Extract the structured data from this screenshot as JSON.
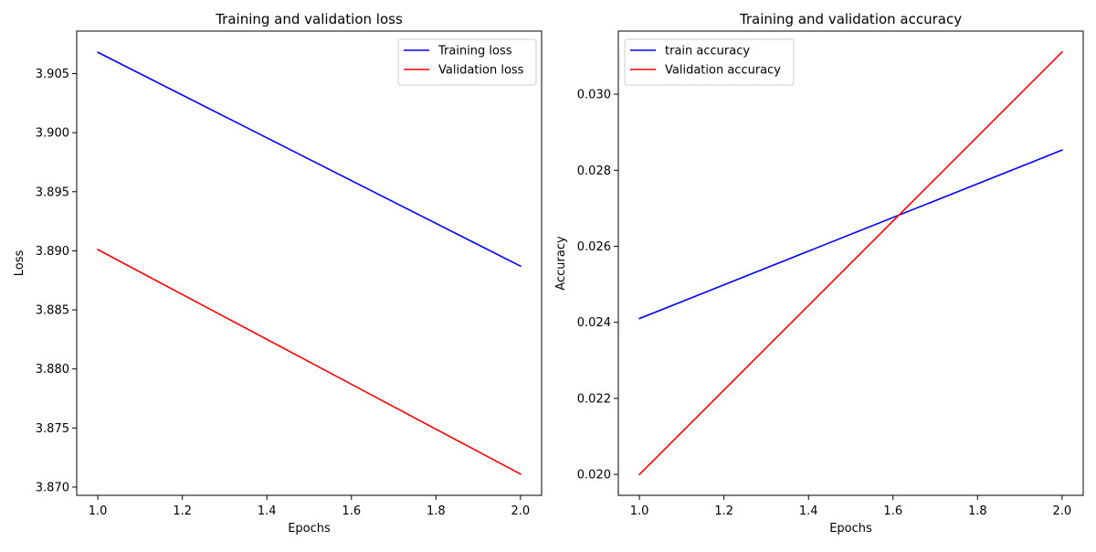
{
  "chart_data": [
    {
      "type": "line",
      "title": "Training and validation loss",
      "xlabel": "Epochs",
      "ylabel": "Loss",
      "xlim": [
        0.95,
        2.05
      ],
      "ylim": [
        3.8693,
        3.9086
      ],
      "x_ticks": [
        1.0,
        1.2,
        1.4,
        1.6,
        1.8,
        2.0
      ],
      "x_tick_labels": [
        "1.0",
        "1.2",
        "1.4",
        "1.6",
        "1.8",
        "2.0"
      ],
      "y_ticks": [
        3.87,
        3.875,
        3.88,
        3.885,
        3.89,
        3.895,
        3.9,
        3.905
      ],
      "y_tick_labels": [
        "3.870",
        "3.875",
        "3.880",
        "3.885",
        "3.890",
        "3.895",
        "3.900",
        "3.905"
      ],
      "grid": false,
      "legend_position": "top-right",
      "x": [
        1,
        2
      ],
      "series": [
        {
          "name": "Training loss",
          "values": [
            3.9068,
            3.8887
          ],
          "color": "#0000ff"
        },
        {
          "name": "Validation loss",
          "values": [
            3.8901,
            3.8711
          ],
          "color": "#ff0000"
        }
      ]
    },
    {
      "type": "line",
      "title": "Training and validation accuracy",
      "xlabel": "Epochs",
      "ylabel": "Accuracy",
      "xlim": [
        0.95,
        2.05
      ],
      "ylim": [
        0.01945,
        0.03166
      ],
      "x_ticks": [
        1.0,
        1.2,
        1.4,
        1.6,
        1.8,
        2.0
      ],
      "x_tick_labels": [
        "1.0",
        "1.2",
        "1.4",
        "1.6",
        "1.8",
        "2.0"
      ],
      "y_ticks": [
        0.02,
        0.022,
        0.024,
        0.026,
        0.028,
        0.03
      ],
      "y_tick_labels": [
        "0.020",
        "0.022",
        "0.024",
        "0.026",
        "0.028",
        "0.030"
      ],
      "grid": false,
      "legend_position": "top-left",
      "x": [
        1,
        2
      ],
      "series": [
        {
          "name": "train accuracy",
          "values": [
            0.0241,
            0.02853
          ],
          "color": "#0000ff"
        },
        {
          "name": "Validation accuracy",
          "values": [
            0.02,
            0.03111
          ],
          "color": "#ff0000"
        }
      ]
    }
  ]
}
